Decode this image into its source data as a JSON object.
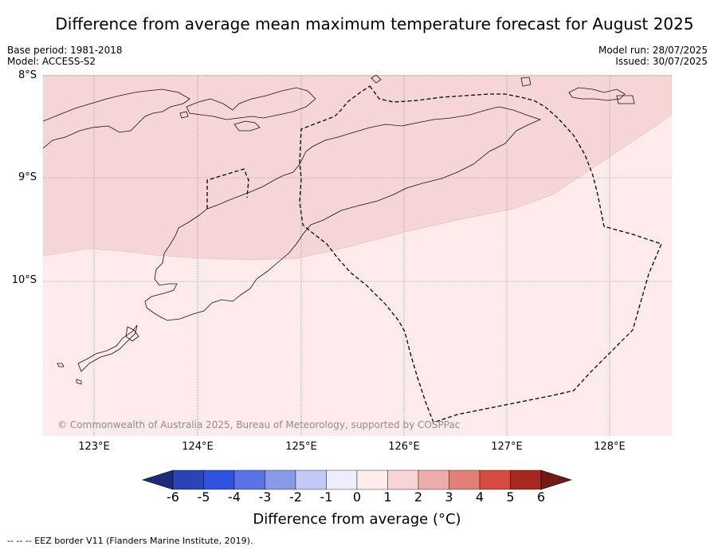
{
  "title": "Difference from average mean maximum temperature forecast for August 2025",
  "meta_left": [
    "Base period: 1981-2018",
    "Model: ACCESS-S2"
  ],
  "meta_right": [
    "Model run: 28/07/2025",
    "Issued: 30/07/2025"
  ],
  "latitude_labels": [
    "8°S",
    "9°S",
    "10°S"
  ],
  "longitude_labels": [
    "123°E",
    "124°E",
    "125°E",
    "126°E",
    "127°E",
    "128°E"
  ],
  "copyright": "© Commonwealth of Australia 2025, Bureau of Meteorology, supported by COSPPac",
  "colorbar": {
    "ticks": [
      "-6",
      "-5",
      "-4",
      "-3",
      "-2",
      "-1",
      "0",
      "1",
      "2",
      "3",
      "4",
      "5",
      "6"
    ],
    "colors": [
      "#1c2a78",
      "#2a44b6",
      "#2f52e0",
      "#5a72e6",
      "#8899e9",
      "#c2c9f4",
      "#eceefc",
      "#fdeceb",
      "#f6d5d4",
      "#eeada8",
      "#e27f77",
      "#d64a40",
      "#a8271f",
      "#73191a"
    ],
    "label": "Difference from average (°C)"
  },
  "map_colors": {
    "band_1_2": "#f5d6d5",
    "band_0_1": "#fcebea"
  },
  "legend_note": "--  --  -- EEZ border V11 (Flanders Marine Institute, 2019)."
}
